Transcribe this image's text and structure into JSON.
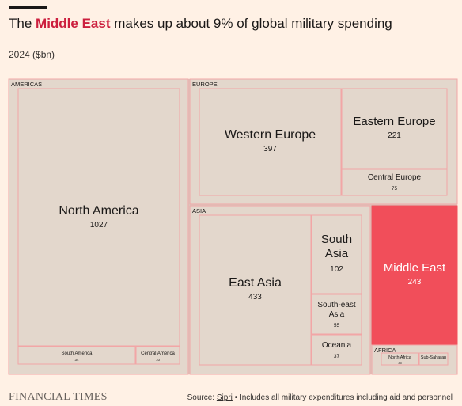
{
  "header": {
    "title_pre": "The ",
    "title_highlight": "Middle East",
    "title_post": " makes up about 9% of global military spending",
    "subtitle": "2024 ($bn)"
  },
  "footer": {
    "brand": "FINANCIAL TIMES",
    "source_label": "Source: ",
    "source_link": "Sipri",
    "source_note": " • Includes all military expenditures including aid and personnel"
  },
  "colors": {
    "background": "#fff1e5",
    "tile": "#e3d7cc",
    "tile_border": "#f2a6a6",
    "highlight": "#f14e5a",
    "text": "#1a1817"
  },
  "chart_data": {
    "type": "treemap",
    "title": "The Middle East makes up about 9% of global military spending",
    "subtitle": "2024 ($bn)",
    "groups": [
      {
        "name": "AMERICAS",
        "items": [
          {
            "name": "North America",
            "value": 1027
          },
          {
            "name": "South America",
            "value": 34
          },
          {
            "name": "Central America",
            "value": 10
          }
        ]
      },
      {
        "name": "EUROPE",
        "items": [
          {
            "name": "Western Europe",
            "value": 397
          },
          {
            "name": "Eastern Europe",
            "value": 221
          },
          {
            "name": "Central Europe",
            "value": 75
          }
        ]
      },
      {
        "name": "ASIA",
        "items": [
          {
            "name": "East Asia",
            "value": 433
          },
          {
            "name": "South Asia",
            "value": 102
          },
          {
            "name": "South-east Asia",
            "value": 55
          },
          {
            "name": "Oceania",
            "value": 37
          }
        ]
      },
      {
        "name": "",
        "items": [
          {
            "name": "Middle East",
            "value": 243,
            "highlight": true
          }
        ]
      },
      {
        "name": "AFRICA",
        "items": [
          {
            "name": "North Africa",
            "value": 35
          },
          {
            "name": "Sub-Saharan",
            "value": ""
          }
        ]
      }
    ]
  }
}
